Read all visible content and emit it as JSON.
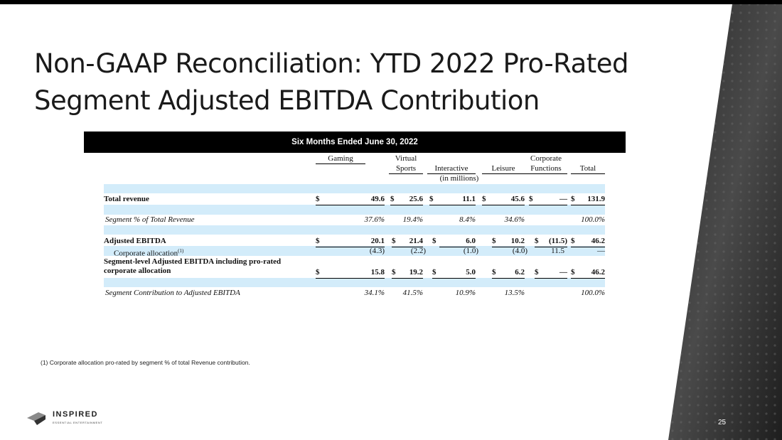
{
  "slide": {
    "title": "Non-GAAP Reconciliation: YTD 2022 Pro-Rated Segment Adjusted EBITDA Contribution",
    "page_number": "25",
    "footnote": "(1) Corporate allocation pro-rated by segment % of total Revenue contribution.",
    "logo": {
      "name": "INSPIRED",
      "tagline": "ESSENTIAL ENTERTAINMENT"
    }
  },
  "table": {
    "period_header": "Six Months Ended June 30, 2022",
    "units": "(in millions)",
    "columns": [
      {
        "line1": "",
        "line2": "Gaming"
      },
      {
        "line1": "Virtual",
        "line2": "Sports"
      },
      {
        "line1": "",
        "line2": "Interactive"
      },
      {
        "line1": "",
        "line2": "Leisure"
      },
      {
        "line1": "Corporate",
        "line2": "Functions"
      },
      {
        "line1": "",
        "line2": "Total"
      }
    ],
    "currency_symbol": "$",
    "rows": {
      "total_revenue": {
        "label": "Total revenue",
        "values": [
          "49.6",
          "25.6",
          "11.1",
          "45.6",
          "—",
          "131.9"
        ]
      },
      "segment_pct": {
        "label": "Segment % of Total Revenue",
        "values": [
          "37.6%",
          "19.4%",
          "8.4%",
          "34.6%",
          "",
          "100.0%"
        ]
      },
      "adjusted_ebitda": {
        "label": "Adjusted EBITDA",
        "values": [
          "20.1",
          "21.4",
          "6.0",
          "10.2",
          "(11.5)",
          "46.2"
        ]
      },
      "corporate_allocation": {
        "label": "Corporate allocation",
        "sup": "(1)",
        "values": [
          "(4.3)",
          "(2.2)",
          "(1.0)",
          "(4.0)",
          "11.5",
          "—"
        ]
      },
      "segment_level": {
        "label_line1": "Segment-level Adjusted EBITDA including pro-rated",
        "label_line2": "corporate allocation",
        "values": [
          "15.8",
          "19.2",
          "5.0",
          "6.2",
          "—",
          "46.2"
        ]
      },
      "segment_contribution": {
        "label": "Segment Contribution to Adjusted EBITDA",
        "values": [
          "34.1%",
          "41.5%",
          "10.9%",
          "13.5%",
          "",
          "100.0%"
        ]
      }
    }
  }
}
